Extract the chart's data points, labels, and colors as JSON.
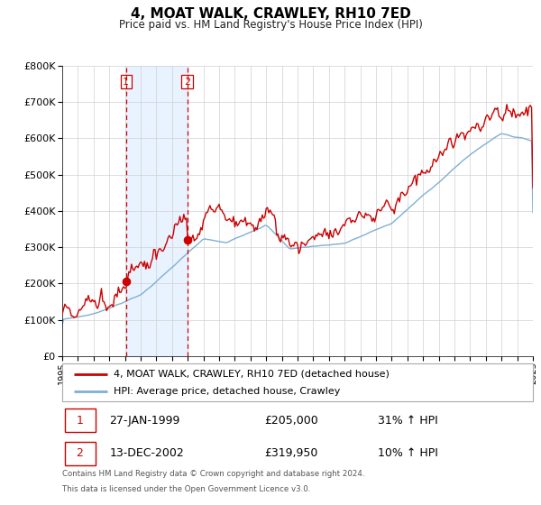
{
  "title": "4, MOAT WALK, CRAWLEY, RH10 7ED",
  "subtitle": "Price paid vs. HM Land Registry's House Price Index (HPI)",
  "legend_label_red": "4, MOAT WALK, CRAWLEY, RH10 7ED (detached house)",
  "legend_label_blue": "HPI: Average price, detached house, Crawley",
  "sale1_date": "27-JAN-1999",
  "sale1_price": "£205,000",
  "sale1_hpi": "31% ↑ HPI",
  "sale1_year": 1999.07,
  "sale1_value": 205000,
  "sale2_date": "13-DEC-2002",
  "sale2_price": "£319,950",
  "sale2_hpi": "10% ↑ HPI",
  "sale2_year": 2002.96,
  "sale2_value": 319950,
  "footnote1": "Contains HM Land Registry data © Crown copyright and database right 2024.",
  "footnote2": "This data is licensed under the Open Government Licence v3.0.",
  "color_red": "#cc0000",
  "color_blue": "#7fafd4",
  "color_shade": "#ddeeff",
  "ylim_max": 800000,
  "xlim_min": 1995,
  "xlim_max": 2025
}
